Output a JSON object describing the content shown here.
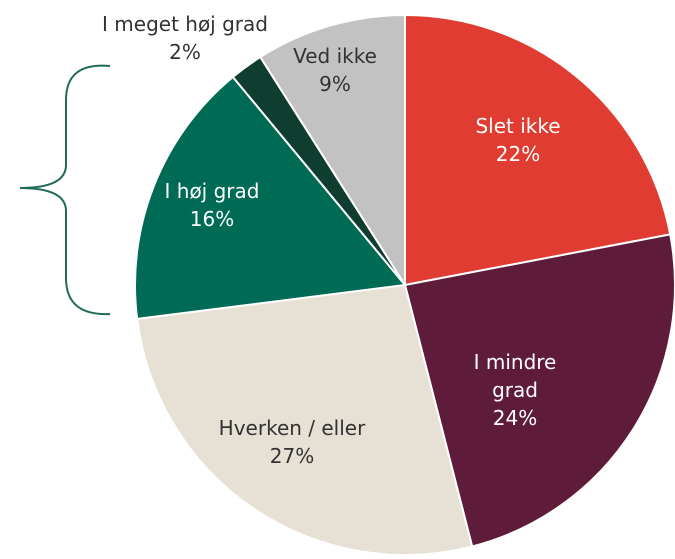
{
  "chart_data": {
    "type": "pie",
    "categories": [
      "Slet ikke",
      "I mindre grad",
      "Hverken / eller",
      "I høj grad",
      "I meget høj grad",
      "Ved ikke"
    ],
    "values": [
      22,
      24,
      27,
      16,
      2,
      9
    ],
    "value_labels": [
      "22%",
      "24%",
      "27%",
      "16%",
      "2%",
      "9%"
    ],
    "colors": [
      "#e03c31",
      "#5e1c3a",
      "#e6e0d5",
      "#006b54",
      "#0f3d30",
      "#c2c2c2"
    ]
  }
}
